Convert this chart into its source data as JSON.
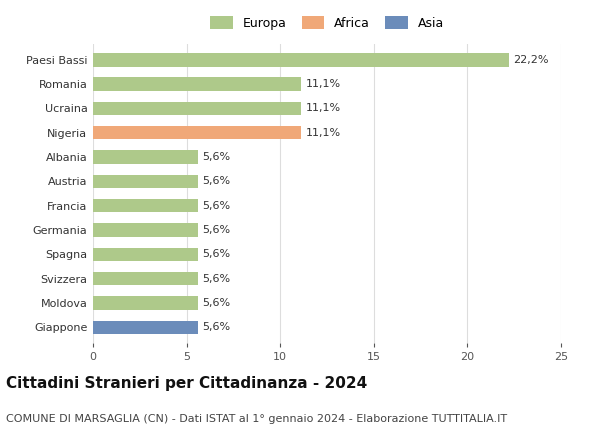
{
  "countries": [
    "Paesi Bassi",
    "Romania",
    "Ucraina",
    "Nigeria",
    "Albania",
    "Austria",
    "Francia",
    "Germania",
    "Spagna",
    "Svizzera",
    "Moldova",
    "Giappone"
  ],
  "values": [
    22.2,
    11.1,
    11.1,
    11.1,
    5.6,
    5.6,
    5.6,
    5.6,
    5.6,
    5.6,
    5.6,
    5.6
  ],
  "continents": [
    "Europa",
    "Europa",
    "Europa",
    "Africa",
    "Europa",
    "Europa",
    "Europa",
    "Europa",
    "Europa",
    "Europa",
    "Europa",
    "Asia"
  ],
  "colors": {
    "Europa": "#aec98a",
    "Africa": "#f0a878",
    "Asia": "#6b8cba"
  },
  "xlim": [
    0,
    25
  ],
  "xticks": [
    0,
    5,
    10,
    15,
    20,
    25
  ],
  "title": "Cittadini Stranieri per Cittadinanza - 2024",
  "subtitle": "COMUNE DI MARSAGLIA (CN) - Dati ISTAT al 1° gennaio 2024 - Elaborazione TUTTITALIA.IT",
  "title_fontsize": 11,
  "subtitle_fontsize": 8,
  "label_fontsize": 8,
  "bar_label_fontsize": 8,
  "background_color": "#ffffff",
  "grid_color": "#dddddd",
  "bar_height": 0.55
}
